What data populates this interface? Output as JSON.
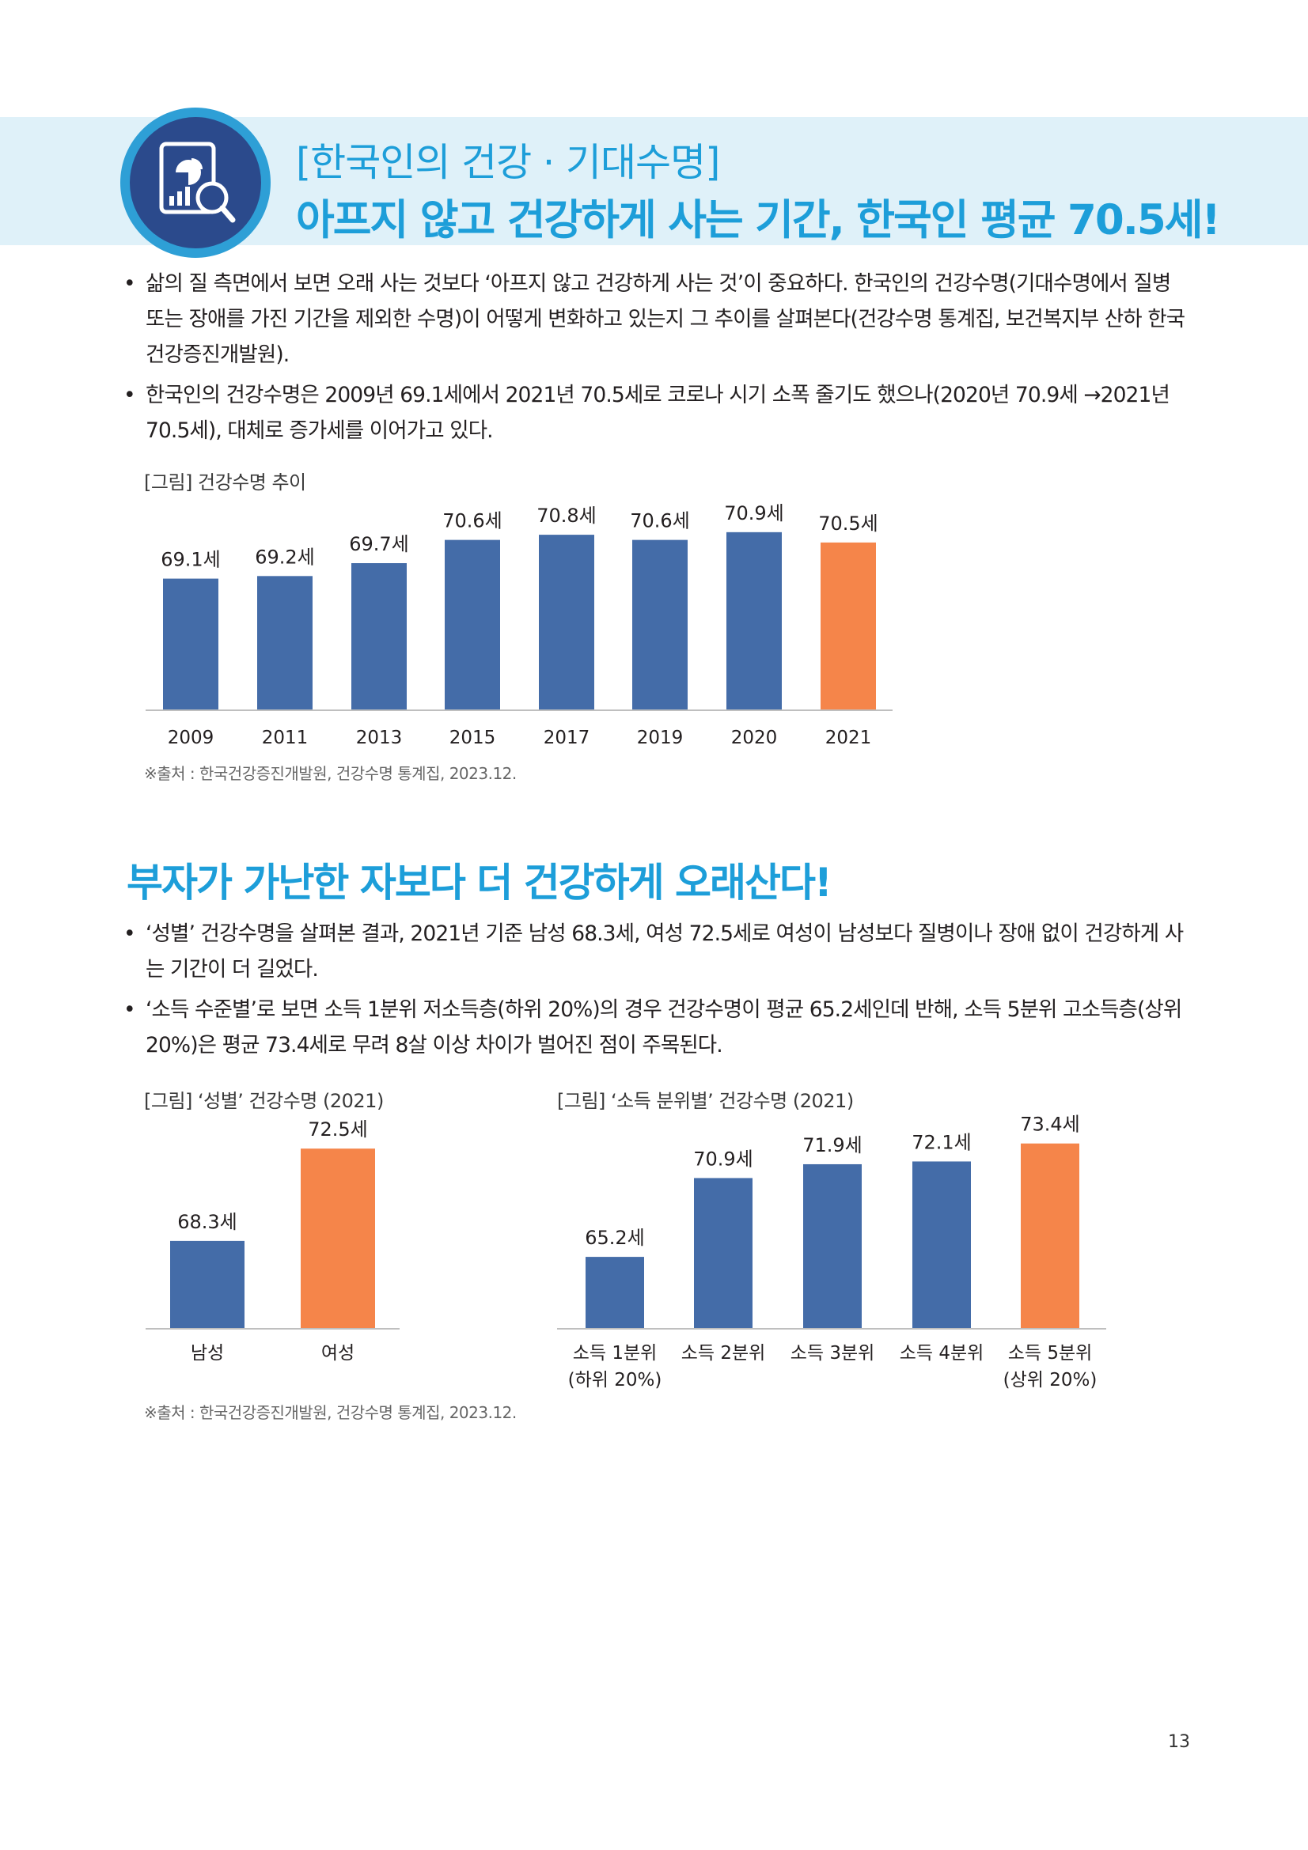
{
  "header": {
    "subtitle": "[한국인의 건강 · 기대수명]",
    "title": "아프지 않고 건강하게 사는 기간, 한국인 평균 70.5세!",
    "icon": "chart-report-magnifier-icon"
  },
  "section1": {
    "bullets": [
      "삶의 질 측면에서 보면 오래 사는 것보다 ‘아프지 않고 건강하게 사는 것’이 중요하다. 한국인의 건강수명(기대수명에서 질병 또는 장애를 가진 기간을 제외한 수명)이 어떻게 변화하고 있는지 그 추이를 살펴본다(건강수명 통계집, 보건복지부 산하 한국건강증진개발원).",
      "한국인의 건강수명은 2009년 69.1세에서 2021년 70.5세로 코로나 시기 소폭 줄기도 했으나(2020년 70.9세 →2021년 70.5세), 대체로 증가세를 이어가고 있다."
    ],
    "figure_caption": "[그림] 건강수명 추이",
    "source": "※출처 : 한국건강증진개발원, 건강수명 통계집, 2023.12."
  },
  "section2": {
    "title": "부자가 가난한 자보다 더 건강하게 오래산다!",
    "bullets": [
      "‘성별’ 건강수명을 살펴본 결과, 2021년 기준 남성 68.3세, 여성 72.5세로 여성이 남성보다 질병이나 장애 없이 건강하게 사는 기간이 더 길었다.",
      "‘소득 수준별’로 보면 소득 1분위 저소득층(하위 20%)의 경우 건강수명이 평균 65.2세인데 반해, 소득 5분위 고소득층(상위 20%)은 평균 73.4세로 무려 8살 이상 차이가 벌어진 점이 주목된다."
    ],
    "figure_caption_gender": "[그림] ‘성별’ 건강수명 (2021)",
    "figure_caption_income": "[그림] ‘소득 분위별’ 건강수명 (2021)",
    "source": "※출처 : 한국건강증진개발원, 건강수명 통계집, 2023.12."
  },
  "page_number": "13",
  "colors": {
    "accent": "#1d9ed9",
    "bar_blue": "#446ca8",
    "bar_orange": "#f5854a",
    "header_bg": "#dff1f9"
  },
  "chart_data": [
    {
      "type": "bar",
      "title": "[그림] 건강수명 추이",
      "categories": [
        "2009",
        "2011",
        "2013",
        "2015",
        "2017",
        "2019",
        "2020",
        "2021"
      ],
      "values": [
        69.1,
        69.2,
        69.7,
        70.6,
        70.8,
        70.6,
        70.9,
        70.5
      ],
      "labels": [
        "69.1세",
        "69.2세",
        "69.7세",
        "70.6세",
        "70.8세",
        "70.6세",
        "70.9세",
        "70.5세"
      ],
      "highlight_index": 7,
      "ylim": [
        64,
        71.6
      ]
    },
    {
      "type": "bar",
      "title": "[그림] ‘성별’ 건강수명 (2021)",
      "categories": [
        "남성",
        "여성"
      ],
      "values": [
        68.3,
        72.5
      ],
      "labels": [
        "68.3세",
        "72.5세"
      ],
      "highlight_index": 1,
      "ylim": [
        64.3,
        73.3
      ]
    },
    {
      "type": "bar",
      "title": "[그림] ‘소득 분위별’ 건강수명 (2021)",
      "categories": [
        [
          "소득 1분위",
          "(하위 20%)"
        ],
        [
          "소득 2분위"
        ],
        [
          "소득 3분위"
        ],
        [
          "소득 4분위"
        ],
        [
          "소득 5분위",
          "(상위 20%)"
        ]
      ],
      "values": [
        65.2,
        70.9,
        71.9,
        72.1,
        73.4
      ],
      "labels": [
        "65.2세",
        "70.9세",
        "71.9세",
        "72.1세",
        "73.4세"
      ],
      "highlight_index": 4,
      "ylim": [
        60,
        74.3
      ]
    }
  ]
}
